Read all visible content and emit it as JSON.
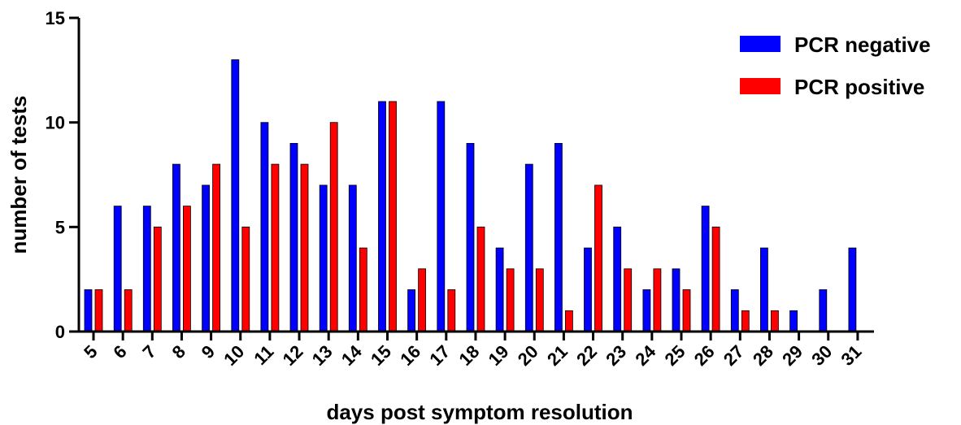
{
  "chart_data": {
    "type": "bar",
    "xlabel": "days post symptom resolution",
    "ylabel": "number of tests",
    "ylim": [
      0,
      15
    ],
    "yticks": [
      0,
      5,
      10,
      15
    ],
    "categories": [
      "5",
      "6",
      "7",
      "8",
      "9",
      "10",
      "11",
      "12",
      "13",
      "14",
      "15",
      "16",
      "17",
      "18",
      "19",
      "20",
      "21",
      "22",
      "23",
      "24",
      "25",
      "26",
      "27",
      "28",
      "29",
      "30",
      "31"
    ],
    "series": [
      {
        "name": "PCR negative",
        "color": "#0000ff",
        "values": [
          2,
          6,
          6,
          8,
          7,
          13,
          10,
          9,
          7,
          7,
          11,
          2,
          11,
          9,
          4,
          8,
          9,
          4,
          5,
          2,
          3,
          6,
          2,
          4,
          1,
          2,
          4
        ]
      },
      {
        "name": "PCR positive",
        "color": "#ff0000",
        "values": [
          2,
          2,
          5,
          6,
          8,
          5,
          8,
          8,
          10,
          4,
          11,
          3,
          2,
          5,
          3,
          3,
          1,
          7,
          3,
          3,
          2,
          5,
          1,
          1,
          0,
          0,
          0
        ]
      }
    ],
    "legend_position": "top-right",
    "grid": false
  }
}
